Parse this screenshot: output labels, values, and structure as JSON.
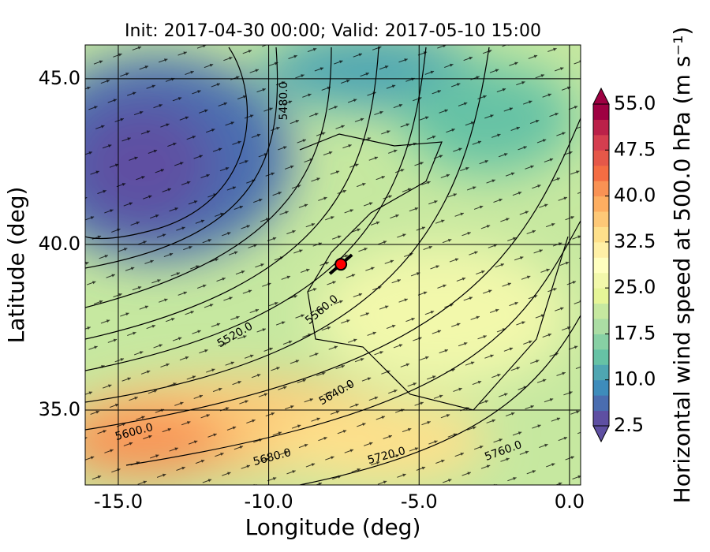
{
  "chart_data": {
    "type": "map",
    "title": "Init: 2017-04-30 00:00; Valid: 2017-05-10 15:00",
    "x_label": "Longitude (deg)",
    "y_label": "Latitude (deg)",
    "xlim": [
      -16.1,
      0.37
    ],
    "ylim": [
      32.74,
      46.02
    ],
    "xticks": [
      {
        "value": -15,
        "label": "-15.0"
      },
      {
        "value": -10,
        "label": "-10.0"
      },
      {
        "value": -5,
        "label": "-5.0"
      },
      {
        "value": 0,
        "label": "0.0"
      }
    ],
    "yticks": [
      {
        "value": 35,
        "label": "35.0"
      },
      {
        "value": 40,
        "label": "40.0"
      },
      {
        "value": 45,
        "label": "45.0"
      }
    ],
    "grid": true,
    "contour_labels": [
      {
        "value": 5480,
        "label": "5480.0"
      },
      {
        "value": 5520,
        "label": "5520.0"
      },
      {
        "value": 5560,
        "label": "5560.0"
      },
      {
        "value": 5600,
        "label": "5600.0"
      },
      {
        "value": 5640,
        "label": "5640.0"
      },
      {
        "value": 5680,
        "label": "5680.0"
      },
      {
        "value": 5720,
        "label": "5720.0"
      },
      {
        "value": 5760,
        "label": "5760.0"
      }
    ],
    "marker": {
      "lon": -7.6,
      "lat": 39.4,
      "color": "#ff0000"
    },
    "colorbar": {
      "label": "Horizontal wind speed at 500.0 hPa (m s⁻¹)",
      "lim": [
        2.5,
        55
      ],
      "ticks": [
        2.5,
        {
          "value": 10,
          "label": "10.0"
        },
        17.5,
        {
          "value": 25,
          "label": "25.0"
        },
        32.5,
        {
          "value": 40,
          "label": "40.0"
        },
        47.5,
        {
          "value": 55,
          "label": "55.0"
        }
      ],
      "colors": [
        "#5e4fa2",
        "#4a6db0",
        "#3e8cbb",
        "#4fa6b2",
        "#66c2a5",
        "#87d0a4",
        "#abdda4",
        "#c6e8a0",
        "#e6f598",
        "#f2f8ab",
        "#ffffbf",
        "#fff0a6",
        "#fee08b",
        "#fdc877",
        "#fdae61",
        "#f99254",
        "#f46d43",
        "#e55849",
        "#d53e4f",
        "#bb2149",
        "#9e0142"
      ]
    }
  }
}
